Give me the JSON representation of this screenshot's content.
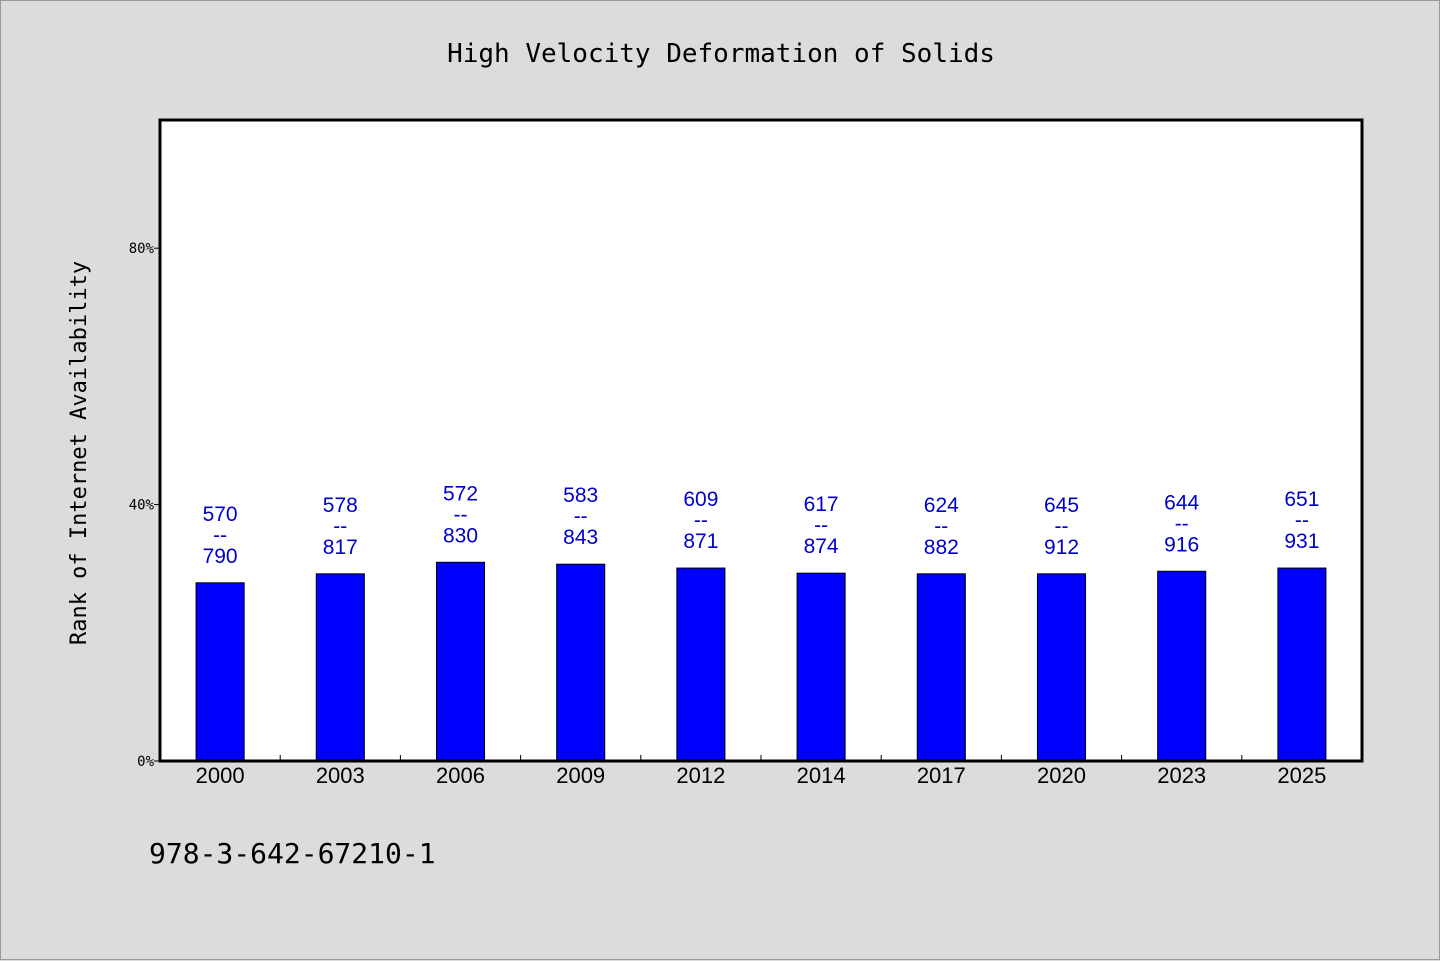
{
  "chart_data": {
    "type": "bar",
    "title": "High Velocity Deformation of Solids",
    "xlabel": "",
    "ylabel": "Rank of Internet Availability",
    "ylim": [
      0,
      100
    ],
    "yticks": [
      {
        "value": 0,
        "label": "0%"
      },
      {
        "value": 40,
        "label": "40%"
      },
      {
        "value": 80,
        "label": "80%"
      }
    ],
    "categories": [
      "2000",
      "2003",
      "2006",
      "2009",
      "2012",
      "2014",
      "2017",
      "2020",
      "2023",
      "2025"
    ],
    "values": [
      27.8,
      29.2,
      31.0,
      30.7,
      30.1,
      29.3,
      29.2,
      29.2,
      29.6,
      30.1
    ],
    "bar_labels": [
      {
        "top": "570",
        "sep": "--",
        "bottom": "790"
      },
      {
        "top": "578",
        "sep": "--",
        "bottom": "817"
      },
      {
        "top": "572",
        "sep": "--",
        "bottom": "830"
      },
      {
        "top": "583",
        "sep": "--",
        "bottom": "843"
      },
      {
        "top": "609",
        "sep": "--",
        "bottom": "871"
      },
      {
        "top": "617",
        "sep": "--",
        "bottom": "874"
      },
      {
        "top": "624",
        "sep": "--",
        "bottom": "882"
      },
      {
        "top": "645",
        "sep": "--",
        "bottom": "912"
      },
      {
        "top": "644",
        "sep": "--",
        "bottom": "916"
      },
      {
        "top": "651",
        "sep": "--",
        "bottom": "931"
      }
    ],
    "bar_color": "#0000ff",
    "label_color": "#0000cc",
    "grid": false,
    "legend": "none"
  },
  "footer": {
    "isbn": "978-3-642-67210-1"
  }
}
